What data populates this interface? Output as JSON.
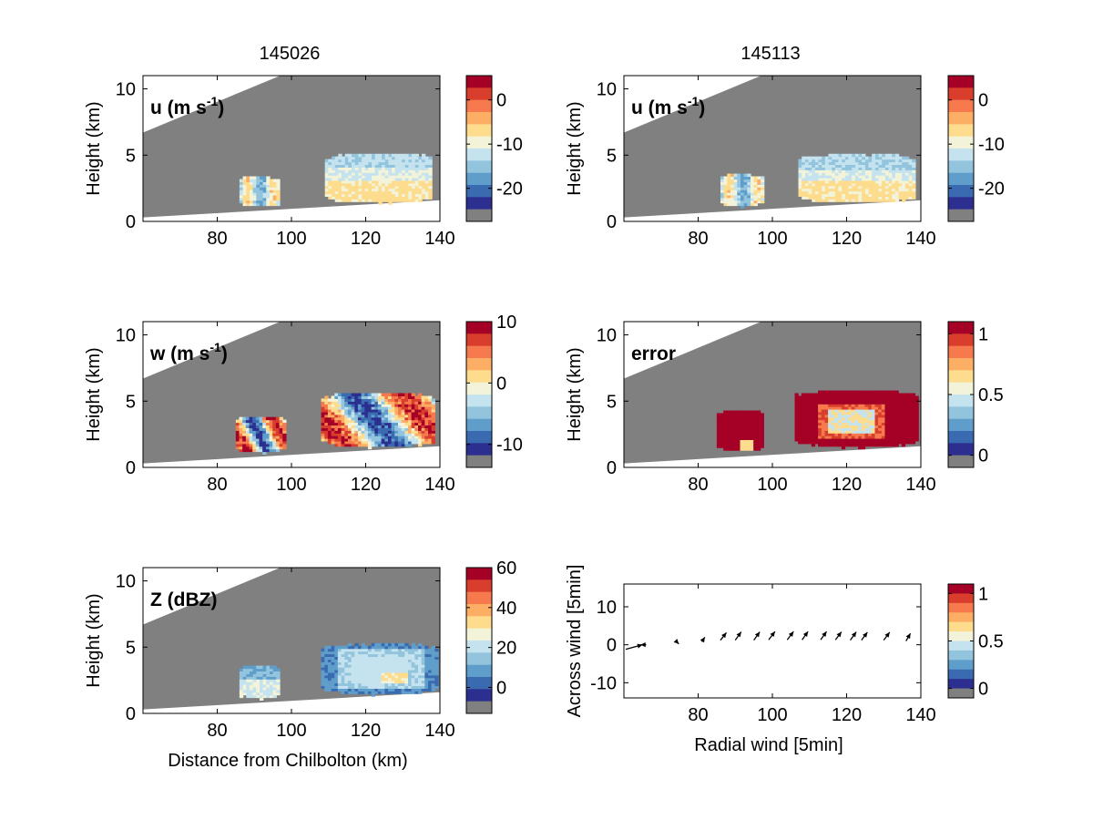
{
  "figure": {
    "time_left": "145026",
    "time_right": "145113"
  },
  "palette": {
    "colors": [
      "#2c2f8f",
      "#3a6bb0",
      "#5f9ecb",
      "#93c4de",
      "#c5e3ee",
      "#f2f3d8",
      "#fddc8e",
      "#fcae64",
      "#f67a4d",
      "#d93e2d",
      "#a50026"
    ],
    "missing": "#808080"
  },
  "chart_data": [
    {
      "type": "heatmap",
      "id": "u_left",
      "panel_label": "u (m s",
      "panel_label_sup": "-1",
      "panel_label_end": ")",
      "ylabel": "Height (km)",
      "xlabel": "",
      "xlim": [
        60,
        140
      ],
      "ylim": [
        0,
        11
      ],
      "xticks": [
        "80",
        "100",
        "120",
        "140"
      ],
      "yticks": [
        "0",
        "5",
        "10"
      ],
      "colorbar": {
        "ticks": [
          "0",
          "-10",
          "-20"
        ],
        "tick_values": [
          0,
          -10,
          -20
        ],
        "range": [
          -27.5,
          5.5
        ]
      },
      "echoes": [
        {
          "x": [
            86,
            96
          ],
          "y": [
            1.0,
            3.3
          ],
          "field": "u_small"
        },
        {
          "x": [
            109,
            137
          ],
          "y": [
            1.3,
            5.1
          ],
          "field": "u_big"
        }
      ]
    },
    {
      "type": "heatmap",
      "id": "u_right",
      "panel_label": "u (m s",
      "panel_label_sup": "-1",
      "panel_label_end": ")",
      "ylabel": "Height (km)",
      "xlabel": "",
      "xlim": [
        60,
        140
      ],
      "ylim": [
        0,
        11
      ],
      "xticks": [
        "80",
        "100",
        "120",
        "140"
      ],
      "yticks": [
        "0",
        "5",
        "10"
      ],
      "colorbar": {
        "ticks": [
          "0",
          "-10",
          "-20"
        ],
        "tick_values": [
          0,
          -10,
          -20
        ],
        "range": [
          -27.5,
          5.5
        ]
      },
      "echoes": [
        {
          "x": [
            86,
            97
          ],
          "y": [
            1.0,
            3.5
          ],
          "field": "u_small"
        },
        {
          "x": [
            107,
            138
          ],
          "y": [
            1.3,
            5.0
          ],
          "field": "u_big"
        }
      ]
    },
    {
      "type": "heatmap",
      "id": "w_left",
      "panel_label": "w (m s",
      "panel_label_sup": "-1",
      "panel_label_end": ")",
      "ylabel": "Height (km)",
      "xlabel": "",
      "xlim": [
        60,
        140
      ],
      "ylim": [
        0,
        11
      ],
      "xticks": [
        "80",
        "100",
        "120",
        "140"
      ],
      "yticks": [
        "0",
        "5",
        "10"
      ],
      "colorbar": {
        "ticks": [
          "10",
          "0",
          "-10"
        ],
        "tick_values": [
          10,
          0,
          -10
        ],
        "range": [
          -13.75,
          10
        ]
      },
      "echoes": [
        {
          "x": [
            85,
            98
          ],
          "y": [
            1.0,
            3.8
          ],
          "field": "w"
        },
        {
          "x": [
            108,
            138
          ],
          "y": [
            1.4,
            5.6
          ],
          "field": "w"
        }
      ]
    },
    {
      "type": "heatmap",
      "id": "error_right",
      "panel_label": "error",
      "panel_label_sup": "",
      "panel_label_end": "",
      "ylabel": "Height (km)",
      "xlabel": "",
      "xlim": [
        60,
        140
      ],
      "ylim": [
        0,
        11
      ],
      "xticks": [
        "80",
        "100",
        "120",
        "140"
      ],
      "yticks": [
        "0",
        "5",
        "10"
      ],
      "colorbar": {
        "ticks": [
          "1",
          "0.5",
          "0"
        ],
        "tick_values": [
          1,
          0.5,
          0
        ],
        "range": [
          -0.1,
          1.1
        ]
      },
      "echoes": [
        {
          "x": [
            85,
            97
          ],
          "y": [
            1.1,
            4.3
          ],
          "field": "error"
        },
        {
          "x": [
            106,
            139
          ],
          "y": [
            1.4,
            5.8
          ],
          "field": "error_big"
        }
      ]
    },
    {
      "type": "heatmap",
      "id": "z_left",
      "panel_label": "Z (dBZ)",
      "panel_label_sup": "",
      "panel_label_end": "",
      "ylabel": "Height (km)",
      "xlabel": "Distance from Chilbolton (km)",
      "xlim": [
        60,
        140
      ],
      "ylim": [
        0,
        11
      ],
      "xticks": [
        "80",
        "100",
        "120",
        "140"
      ],
      "yticks": [
        "0",
        "5",
        "10"
      ],
      "colorbar": {
        "ticks": [
          "60",
          "40",
          "20",
          "0"
        ],
        "tick_values": [
          60,
          40,
          20,
          0
        ],
        "range": [
          -13,
          60
        ]
      },
      "echoes": [
        {
          "x": [
            86,
            96
          ],
          "y": [
            1.0,
            3.6
          ],
          "field": "z_small"
        },
        {
          "x": [
            108,
            139
          ],
          "y": [
            1.3,
            5.2
          ],
          "field": "z_big"
        }
      ]
    },
    {
      "type": "scatter",
      "id": "wind_vectors",
      "panel_label": "",
      "ylabel": "Across wind [5min]",
      "xlabel": "Radial wind [5min]",
      "xlim": [
        60,
        140
      ],
      "ylim": [
        -14,
        16
      ],
      "xticks": [
        "80",
        "100",
        "120",
        "140"
      ],
      "yticks": [
        "-10",
        "0",
        "10"
      ],
      "colorbar": {
        "ticks": [
          "1",
          "0.5",
          "0"
        ],
        "tick_values": [
          1,
          0.5,
          0
        ],
        "range": [
          -0.1,
          1.1
        ]
      },
      "vectors": [
        {
          "x": 60.5,
          "y": -1.2,
          "u": 4.5,
          "v": 1.2
        },
        {
          "x": 66,
          "y": 0.0,
          "u": -1.5,
          "v": 0.0
        },
        {
          "x": 74,
          "y": 1.0,
          "u": 0.8,
          "v": -0.8
        },
        {
          "x": 81,
          "y": 0.8,
          "u": 0.8,
          "v": 1.2
        },
        {
          "x": 86,
          "y": 1.2,
          "u": 1.6,
          "v": 2.0
        },
        {
          "x": 90,
          "y": 1.2,
          "u": 1.6,
          "v": 2.2
        },
        {
          "x": 95,
          "y": 1.2,
          "u": 1.6,
          "v": 2.2
        },
        {
          "x": 99,
          "y": 1.3,
          "u": 1.7,
          "v": 2.2
        },
        {
          "x": 104,
          "y": 1.3,
          "u": 1.7,
          "v": 2.2
        },
        {
          "x": 108,
          "y": 1.3,
          "u": 1.6,
          "v": 2.2
        },
        {
          "x": 113,
          "y": 1.3,
          "u": 1.6,
          "v": 2.2
        },
        {
          "x": 117,
          "y": 1.3,
          "u": 1.6,
          "v": 2.1
        },
        {
          "x": 121,
          "y": 1.2,
          "u": 1.6,
          "v": 2.2
        },
        {
          "x": 124,
          "y": 1.2,
          "u": 1.6,
          "v": 2.1
        },
        {
          "x": 130,
          "y": 1.2,
          "u": 1.6,
          "v": 2.1
        },
        {
          "x": 136,
          "y": 1.0,
          "u": 1.2,
          "v": 2.0
        }
      ]
    }
  ]
}
